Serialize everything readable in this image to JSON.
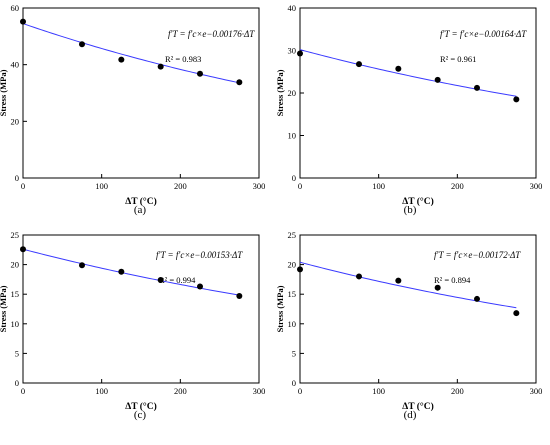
{
  "chart_data": [
    {
      "type": "scatter",
      "caption": "(a)",
      "xlabel": "ΔT (°C)",
      "ylabel": "Stress (MPa)",
      "xlim": [
        0,
        300
      ],
      "ylim": [
        0,
        60
      ],
      "xticks": [
        0,
        100,
        200,
        300
      ],
      "yticks": [
        0,
        20,
        40,
        60
      ],
      "points": [
        {
          "x": 0,
          "y": 55.2
        },
        {
          "x": 75,
          "y": 47.2
        },
        {
          "x": 125,
          "y": 41.8
        },
        {
          "x": 175,
          "y": 39.3
        },
        {
          "x": 225,
          "y": 36.8
        },
        {
          "x": 275,
          "y": 33.8
        }
      ],
      "fit": {
        "a": 54.5,
        "k": -0.00176
      },
      "equation": "f′T = f′c×e−0.00176·ΔT",
      "r2": "R² = 0.983"
    },
    {
      "type": "scatter",
      "caption": "(b)",
      "xlabel": "ΔT (°C)",
      "ylabel": "Stress (MPa)",
      "xlim": [
        0,
        300
      ],
      "ylim": [
        0,
        40
      ],
      "xticks": [
        0,
        100,
        200,
        300
      ],
      "yticks": [
        0,
        10,
        20,
        30,
        40
      ],
      "points": [
        {
          "x": 0,
          "y": 29.3
        },
        {
          "x": 75,
          "y": 26.8
        },
        {
          "x": 125,
          "y": 25.7
        },
        {
          "x": 175,
          "y": 23.1
        },
        {
          "x": 225,
          "y": 21.2
        },
        {
          "x": 275,
          "y": 18.5
        }
      ],
      "fit": {
        "a": 30.2,
        "k": -0.00164
      },
      "equation": "f′T = f′c×e−0.00164·ΔT",
      "r2": "R² = 0.961"
    },
    {
      "type": "scatter",
      "caption": "(c)",
      "xlabel": "ΔT (°C)",
      "ylabel": "Stress (MPa)",
      "xlim": [
        0,
        300
      ],
      "ylim": [
        0,
        25
      ],
      "xticks": [
        0,
        100,
        200,
        300
      ],
      "yticks": [
        0,
        5,
        10,
        15,
        20,
        25
      ],
      "points": [
        {
          "x": 0,
          "y": 22.6
        },
        {
          "x": 75,
          "y": 19.9
        },
        {
          "x": 125,
          "y": 18.8
        },
        {
          "x": 175,
          "y": 17.4
        },
        {
          "x": 225,
          "y": 16.3
        },
        {
          "x": 275,
          "y": 14.7
        }
      ],
      "fit": {
        "a": 22.6,
        "k": -0.00153
      },
      "equation": "f′T = f′c×e−0.00153·ΔT",
      "r2": "R² = 0.994"
    },
    {
      "type": "scatter",
      "caption": "(d)",
      "xlabel": "ΔT (°C)",
      "ylabel": "Stress (MPa)",
      "xlim": [
        0,
        300
      ],
      "ylim": [
        0,
        25
      ],
      "xticks": [
        0,
        100,
        200,
        300
      ],
      "yticks": [
        0,
        5,
        10,
        15,
        20,
        25
      ],
      "points": [
        {
          "x": 0,
          "y": 19.2
        },
        {
          "x": 75,
          "y": 18.0
        },
        {
          "x": 125,
          "y": 17.3
        },
        {
          "x": 175,
          "y": 16.1
        },
        {
          "x": 225,
          "y": 14.2
        },
        {
          "x": 275,
          "y": 11.8
        }
      ],
      "fit": {
        "a": 20.4,
        "k": -0.00172
      },
      "equation": "f′T = f′c×e−0.00172·ΔT",
      "r2": "R² = 0.894"
    }
  ]
}
